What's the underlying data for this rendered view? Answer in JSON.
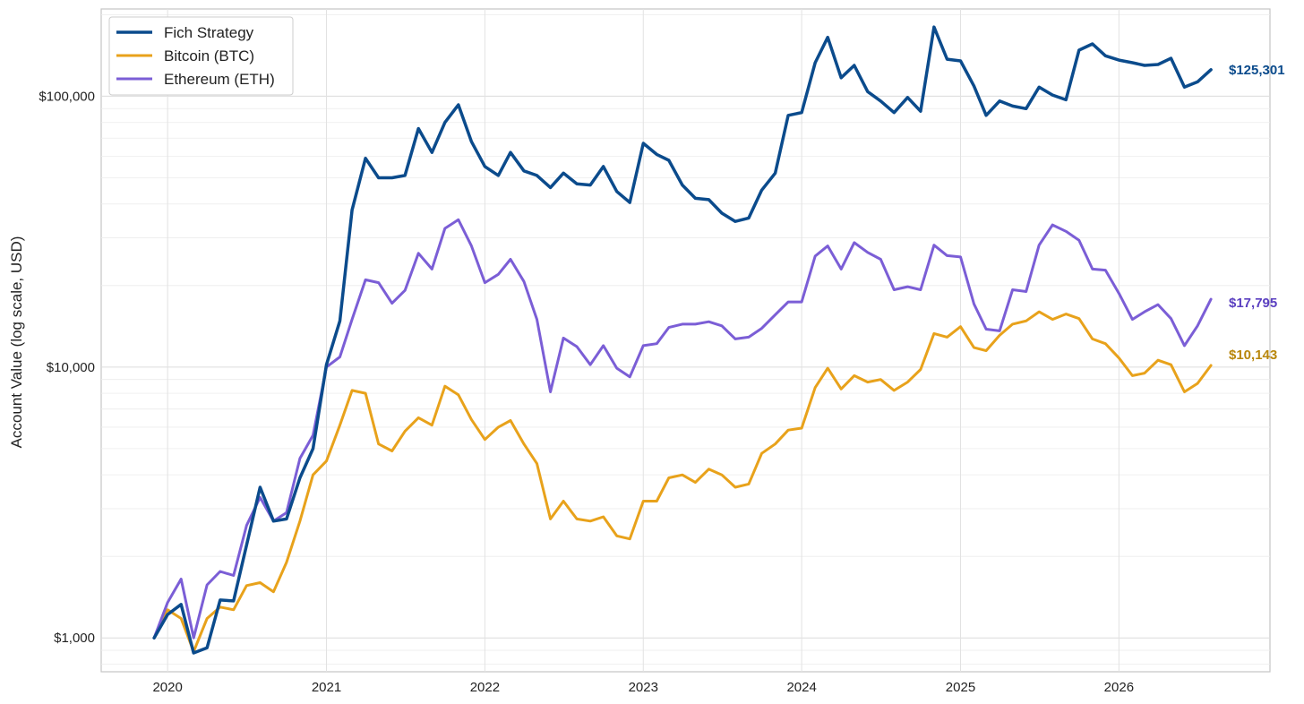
{
  "chart_data": {
    "type": "line",
    "ylabel": "Account Value (log scale, USD)",
    "yscale": "log",
    "ylim": [
      750,
      210000
    ],
    "xlim": [
      "2019-08-01",
      "2026-12-15"
    ],
    "grid": true,
    "legend_position": "top-left",
    "x_ticks": [
      {
        "value": "2020-01-01",
        "label": "2020"
      },
      {
        "value": "2021-01-01",
        "label": "2021"
      },
      {
        "value": "2022-01-01",
        "label": "2022"
      },
      {
        "value": "2023-01-01",
        "label": "2023"
      },
      {
        "value": "2024-01-01",
        "label": "2024"
      },
      {
        "value": "2025-01-01",
        "label": "2025"
      },
      {
        "value": "2026-01-01",
        "label": "2026"
      }
    ],
    "y_ticks": [
      {
        "value": 1000,
        "label": "$1,000"
      },
      {
        "value": 10000,
        "label": "$10,000"
      },
      {
        "value": 100000,
        "label": "$100,000"
      }
    ],
    "x": [
      "2019-12-01",
      "2020-01-01",
      "2020-02-01",
      "2020-03-01",
      "2020-04-01",
      "2020-05-01",
      "2020-06-01",
      "2020-07-01",
      "2020-08-01",
      "2020-09-01",
      "2020-10-01",
      "2020-11-01",
      "2020-12-01",
      "2021-01-01",
      "2021-02-01",
      "2021-03-01",
      "2021-04-01",
      "2021-05-01",
      "2021-06-01",
      "2021-07-01",
      "2021-08-01",
      "2021-09-01",
      "2021-10-01",
      "2021-11-01",
      "2021-12-01",
      "2022-01-01",
      "2022-02-01",
      "2022-03-01",
      "2022-04-01",
      "2022-05-01",
      "2022-06-01",
      "2022-07-01",
      "2022-08-01",
      "2022-09-01",
      "2022-10-01",
      "2022-11-01",
      "2022-12-01",
      "2023-01-01",
      "2023-02-01",
      "2023-03-01",
      "2023-04-01",
      "2023-05-01",
      "2023-06-01",
      "2023-07-01",
      "2023-08-01",
      "2023-09-01",
      "2023-10-01",
      "2023-11-01",
      "2023-12-01",
      "2024-01-01",
      "2024-02-01",
      "2024-03-01",
      "2024-04-01",
      "2024-05-01",
      "2024-06-01",
      "2024-07-01",
      "2024-08-01",
      "2024-09-01",
      "2024-10-01",
      "2024-11-01",
      "2024-12-01",
      "2025-01-01",
      "2025-02-01",
      "2025-03-01",
      "2025-04-01",
      "2025-05-01",
      "2025-06-01",
      "2025-07-01",
      "2025-08-01",
      "2025-09-01",
      "2025-10-01",
      "2025-11-01",
      "2025-12-01",
      "2026-01-01",
      "2026-02-01",
      "2026-03-01",
      "2026-04-01",
      "2026-05-01",
      "2026-06-01",
      "2026-07-01",
      "2026-08-01"
    ],
    "series": [
      {
        "name": "Fich Strategy",
        "color": "#0b4b8c",
        "width": 3.5,
        "end_label": "$125,301",
        "values": [
          1000,
          1220,
          1330,
          880,
          920,
          1380,
          1370,
          2200,
          3600,
          2700,
          2750,
          3900,
          5000,
          10200,
          14800,
          38000,
          59000,
          50000,
          50000,
          51000,
          76000,
          62000,
          80000,
          93000,
          68000,
          55000,
          51000,
          62000,
          53000,
          51000,
          46000,
          52000,
          47500,
          47000,
          55000,
          44500,
          40500,
          67000,
          61000,
          58000,
          47000,
          42000,
          41500,
          37000,
          34500,
          35500,
          45000,
          52000,
          85000,
          87000,
          133000,
          165000,
          117000,
          130000,
          104000,
          96000,
          87000,
          99000,
          88000,
          180000,
          137000,
          135000,
          109000,
          85000,
          96000,
          92000,
          90000,
          108000,
          101000,
          97000,
          148000,
          156000,
          141000,
          136000,
          133000,
          130000,
          131000,
          138000,
          108000,
          113000,
          125301
        ]
      },
      {
        "name": "Bitcoin (BTC)",
        "color": "#e8a21b",
        "width": 3,
        "end_label": "$10,143",
        "label_color": "#b8860b",
        "values": [
          1000,
          1270,
          1180,
          890,
          1180,
          1300,
          1270,
          1560,
          1600,
          1480,
          1900,
          2700,
          4000,
          4500,
          6100,
          8200,
          8000,
          5200,
          4900,
          5800,
          6500,
          6100,
          8500,
          7900,
          6400,
          5400,
          6000,
          6350,
          5200,
          4400,
          2750,
          3200,
          2750,
          2700,
          2800,
          2380,
          2320,
          3200,
          3200,
          3900,
          4000,
          3750,
          4200,
          4000,
          3600,
          3700,
          4800,
          5200,
          5850,
          5950,
          8400,
          9900,
          8300,
          9300,
          8800,
          9000,
          8200,
          8800,
          9800,
          13300,
          12900,
          14100,
          11800,
          11500,
          13100,
          14400,
          14800,
          16000,
          15000,
          15700,
          15100,
          12700,
          12200,
          10800,
          9300,
          9500,
          10600,
          10200,
          8100,
          8700,
          10143
        ]
      },
      {
        "name": "Ethereum (ETH)",
        "color": "#7b5ed6",
        "width": 3,
        "end_label": "$17,795",
        "label_color": "#5a3fc0",
        "values": [
          1000,
          1350,
          1650,
          1000,
          1570,
          1760,
          1700,
          2600,
          3300,
          2700,
          2900,
          4600,
          5600,
          10000,
          10900,
          15000,
          21000,
          20500,
          17200,
          19200,
          26300,
          23000,
          32500,
          35000,
          28000,
          20500,
          22000,
          25000,
          20700,
          15000,
          8100,
          12800,
          11900,
          10200,
          12000,
          9900,
          9200,
          12000,
          12200,
          14000,
          14400,
          14400,
          14700,
          14200,
          12700,
          12900,
          13900,
          15600,
          17400,
          17400,
          25700,
          28000,
          23000,
          28800,
          26500,
          25000,
          19300,
          19800,
          19300,
          28200,
          25800,
          25500,
          17100,
          13800,
          13600,
          19300,
          19000,
          28200,
          33500,
          31700,
          29400,
          23000,
          22800,
          18700,
          15000,
          16000,
          17000,
          15100,
          12000,
          14200,
          17795
        ]
      }
    ]
  }
}
